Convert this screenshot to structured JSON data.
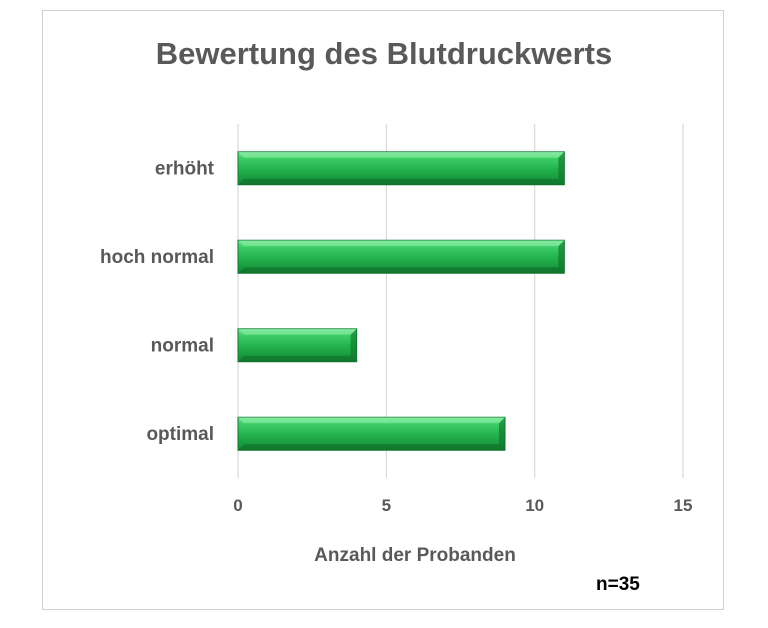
{
  "chart_data": {
    "type": "bar",
    "orientation": "horizontal",
    "title": "Bewertung des Blutdruckwerts",
    "xlabel": "Anzahl der Probanden",
    "ylabel": "",
    "categories": [
      "erhöht",
      "hoch normal",
      "normal",
      "optimal"
    ],
    "values": [
      11,
      11,
      4,
      9
    ],
    "xlim": [
      0,
      15
    ],
    "xticks": [
      0,
      5,
      10,
      15
    ],
    "grid": true,
    "legend": "none",
    "bar_color": "#22b04b",
    "annotation": "n=35"
  }
}
